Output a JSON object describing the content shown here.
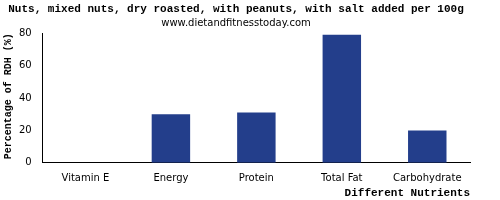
{
  "chart_data": {
    "type": "bar",
    "title": "Nuts, mixed nuts, dry roasted, with peanuts, with salt added per 100g",
    "subtitle": "www.dietandfitnesstoday.com",
    "x_label": "Different Nutrients",
    "y_label": "Percentage of RDH (%)",
    "categories": [
      "Vitamin E",
      "Energy",
      "Protein",
      "Total Fat",
      "Carbohydrate"
    ],
    "values": [
      0,
      30,
      31,
      79,
      20
    ],
    "color": "#233e8b",
    "ylim": [
      0,
      80
    ],
    "yticks": [
      0,
      20,
      40,
      60,
      80
    ],
    "grid": false
  }
}
